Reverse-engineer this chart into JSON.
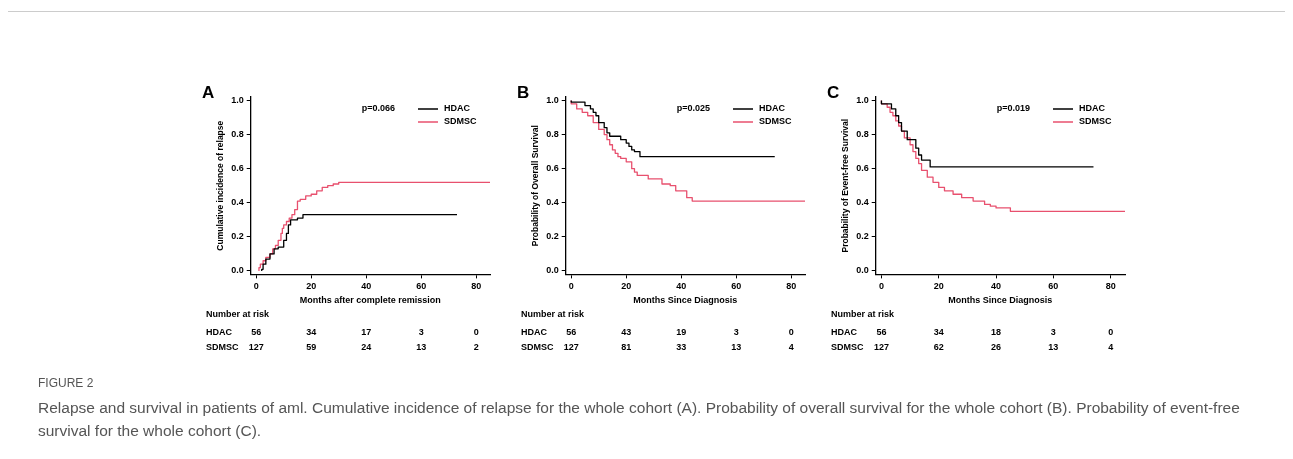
{
  "chart_data": [
    {
      "type": "step",
      "title": "A",
      "xlabel": "Months after complete remission",
      "ylabel": "Cumulative incidence of relapse",
      "xlim": [
        -2,
        85
      ],
      "ylim": [
        -0.02,
        1.02
      ],
      "xticks": [
        0,
        20,
        40,
        60,
        80
      ],
      "yticks": [
        {
          "value": 0,
          "label": "0.0"
        },
        {
          "value": 0.2,
          "label": "0.2"
        },
        {
          "value": 0.4,
          "label": "0.4"
        },
        {
          "value": 0.6,
          "label": "0.6"
        },
        {
          "value": 0.8,
          "label": "0.8"
        },
        {
          "value": 1,
          "label": "1.0"
        }
      ],
      "legend": "top right",
      "marker": "none",
      "line_style": "solid",
      "series": [
        {
          "name": "HDAC",
          "color": "#000000",
          "x": [
            2,
            2.5,
            3.5,
            5,
            6.5,
            8,
            10,
            11,
            11.7,
            12.5,
            15,
            17,
            17.5,
            73
          ],
          "values": [
            0,
            0.01,
            0.04,
            0.07,
            0.1,
            0.13,
            0.14,
            0.18,
            0.22,
            0.27,
            0.3,
            0.31,
            0.33,
            0.33
          ]
        },
        {
          "name": "SDMSC",
          "color": "#e8506e",
          "x": [
            1,
            1.5,
            2.5,
            3.5,
            5,
            6,
            7,
            8,
            9,
            9.5,
            10,
            11,
            12,
            13,
            14,
            15,
            16,
            18,
            20,
            22,
            24,
            26,
            28,
            30,
            35,
            85
          ],
          "values": [
            0,
            0.02,
            0.04,
            0.06,
            0.08,
            0.1,
            0.13,
            0.15,
            0.18,
            0.22,
            0.25,
            0.27,
            0.29,
            0.31,
            0.33,
            0.36,
            0.41,
            0.42,
            0.44,
            0.45,
            0.47,
            0.49,
            0.5,
            0.51,
            0.52,
            0.52
          ]
        }
      ],
      "annotations": [
        "p=0.066",
        "Number at risk",
        "HDAC",
        "56",
        "34",
        "17",
        "3",
        "0",
        "SDMSC",
        "127",
        "59",
        "24",
        "13",
        "2"
      ]
    },
    {
      "type": "step",
      "title": "B",
      "xlabel": "Months Since Diagnosis",
      "ylabel": "Probability of Overall Survival",
      "xlim": [
        -2,
        85
      ],
      "ylim": [
        -0.02,
        1.02
      ],
      "xticks": [
        0,
        20,
        40,
        60,
        80
      ],
      "yticks": [
        {
          "value": 0,
          "label": "0.0"
        },
        {
          "value": 0.2,
          "label": "0.2"
        },
        {
          "value": 0.4,
          "label": "0.4"
        },
        {
          "value": 0.6,
          "label": "0.6"
        },
        {
          "value": 0.8,
          "label": "0.8"
        },
        {
          "value": 1,
          "label": "1.0"
        }
      ],
      "legend": "top right",
      "marker": "none",
      "line_style": "solid",
      "series": [
        {
          "name": "HDAC",
          "color": "#000000",
          "x": [
            0,
            5,
            7,
            8,
            9,
            10,
            12,
            13,
            14,
            18,
            20,
            21,
            22,
            23,
            25,
            39,
            74
          ],
          "values": [
            1,
            0.99,
            0.97,
            0.95,
            0.93,
            0.91,
            0.87,
            0.84,
            0.81,
            0.79,
            0.77,
            0.75,
            0.73,
            0.71,
            0.7,
            0.67,
            0.67
          ]
        },
        {
          "name": "SDMSC",
          "color": "#e8506e",
          "x": [
            0,
            2,
            4,
            6,
            8,
            10,
            12,
            13,
            14,
            15,
            16,
            17,
            18,
            20,
            22,
            23,
            24,
            28,
            33,
            36,
            38,
            42,
            44,
            55,
            85
          ],
          "values": [
            1,
            0.98,
            0.95,
            0.93,
            0.91,
            0.87,
            0.83,
            0.8,
            0.77,
            0.74,
            0.71,
            0.69,
            0.67,
            0.66,
            0.64,
            0.6,
            0.58,
            0.56,
            0.54,
            0.51,
            0.5,
            0.47,
            0.43,
            0.41,
            0.41
          ]
        }
      ],
      "annotations": [
        "p=0.025",
        "Number at risk",
        "HDAC",
        "56",
        "43",
        "19",
        "3",
        "0",
        "SDMSC",
        "127",
        "81",
        "33",
        "13",
        "4"
      ]
    },
    {
      "type": "step",
      "title": "C",
      "xlabel": "Months Since Diagnosis",
      "ylabel": "Probability of Event-free Survival",
      "xlim": [
        -2,
        85
      ],
      "ylim": [
        -0.02,
        1.02
      ],
      "xticks": [
        0,
        20,
        40,
        60,
        80
      ],
      "yticks": [
        {
          "value": 0,
          "label": "0.0"
        },
        {
          "value": 0.2,
          "label": "0.2"
        },
        {
          "value": 0.4,
          "label": "0.4"
        },
        {
          "value": 0.6,
          "label": "0.6"
        },
        {
          "value": 0.8,
          "label": "0.8"
        },
        {
          "value": 1,
          "label": "1.0"
        }
      ],
      "legend": "top right",
      "marker": "none",
      "line_style": "solid",
      "series": [
        {
          "name": "HDAC",
          "color": "#000000",
          "x": [
            0,
            3.5,
            5,
            6,
            7,
            9,
            12,
            13,
            14,
            17,
            19,
            74
          ],
          "values": [
            1,
            0.98,
            0.95,
            0.91,
            0.87,
            0.82,
            0.77,
            0.72,
            0.68,
            0.65,
            0.61,
            0.61
          ]
        },
        {
          "name": "SDMSC",
          "color": "#e8506e",
          "x": [
            0,
            2,
            3,
            4,
            5,
            6,
            7,
            8,
            10,
            11,
            12,
            13,
            14,
            16,
            18,
            20,
            22,
            25,
            28,
            32,
            36,
            38,
            40,
            45,
            55,
            85
          ],
          "values": [
            1,
            0.98,
            0.96,
            0.93,
            0.91,
            0.88,
            0.85,
            0.82,
            0.78,
            0.74,
            0.7,
            0.66,
            0.63,
            0.59,
            0.55,
            0.52,
            0.49,
            0.47,
            0.45,
            0.43,
            0.41,
            0.39,
            0.38,
            0.37,
            0.35,
            0.35
          ]
        }
      ],
      "annotations": [
        "p=0.019",
        "Number at risk",
        "HDAC",
        "56",
        "34",
        "18",
        "3",
        "0",
        "SDMSC",
        "127",
        "62",
        "26",
        "13",
        "4"
      ]
    },
    {
      "type": "other",
      "title": "FIGURE 2",
      "annotations": [
        "Relapse and survival in patients of aml. Cumulative incidence of relapse for the whole cohort (A). Probability of overall survival for the whole cohort (B). Probability of event-free survival for the whole cohort (C)."
      ]
    }
  ]
}
